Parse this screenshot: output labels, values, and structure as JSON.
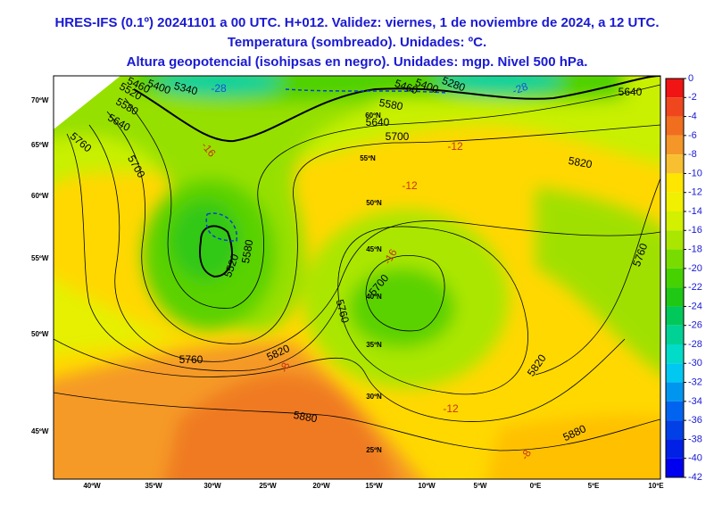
{
  "header": {
    "lines": [
      "HRES-IFS (0.1º) 20241101 a 00 UTC. H+012. Validez: viernes, 1 de noviembre de 2024, a 12 UTC.",
      "Temperatura (sombreado). Unidades: ºC.",
      "Altura geopotencial (isohipsas en negro). Unidades: mgp. Nivel 500 hPa."
    ]
  },
  "colorbar": {
    "ticks": [
      0,
      -2,
      -4,
      -6,
      -8,
      -10,
      -12,
      -14,
      -16,
      -18,
      -20,
      -22,
      -24,
      -26,
      -28,
      -30,
      -32,
      -34,
      -36,
      -38,
      -40,
      -42
    ],
    "colors": [
      "#f01414",
      "#f0461e",
      "#f06e1e",
      "#f59628",
      "#f8c030",
      "#ffe600",
      "#f0f000",
      "#d2f000",
      "#aae600",
      "#78dc00",
      "#46d200",
      "#1ec814",
      "#00c85a",
      "#00d296",
      "#00dcc8",
      "#00c8f0",
      "#0096f0",
      "#0064f0",
      "#0040e6",
      "#0020e6",
      "#0000f0"
    ]
  },
  "map": {
    "lon_labels": [
      "40ºW",
      "35ºW",
      "30ºW",
      "25ºW",
      "20ºW",
      "15ºW",
      "10ºW",
      "5ºW",
      "0ºE",
      "5ºE",
      "10ºE"
    ],
    "lat_labels": [
      "70ºW",
      "65ºW",
      "60ºW",
      "55ºW",
      "50ºW",
      "45ºW"
    ],
    "inner_lat_labels": [
      "60ºN",
      "55ºN",
      "50ºN",
      "45ºN",
      "40ºN",
      "35ºN",
      "30ºN",
      "25ºN"
    ],
    "height_labels": [
      5760,
      5700,
      5640,
      5580,
      5520,
      5460,
      5400,
      5340,
      5580,
      5520,
      5760,
      5820,
      5880,
      5760,
      5700,
      5820,
      5880,
      5760,
      5820,
      5700,
      5640,
      5580,
      5460,
      5400,
      5280,
      5640
    ],
    "temp_labels": [
      -16,
      -12,
      -12,
      -16,
      -12,
      -8,
      -8,
      -28,
      -28
    ]
  }
}
